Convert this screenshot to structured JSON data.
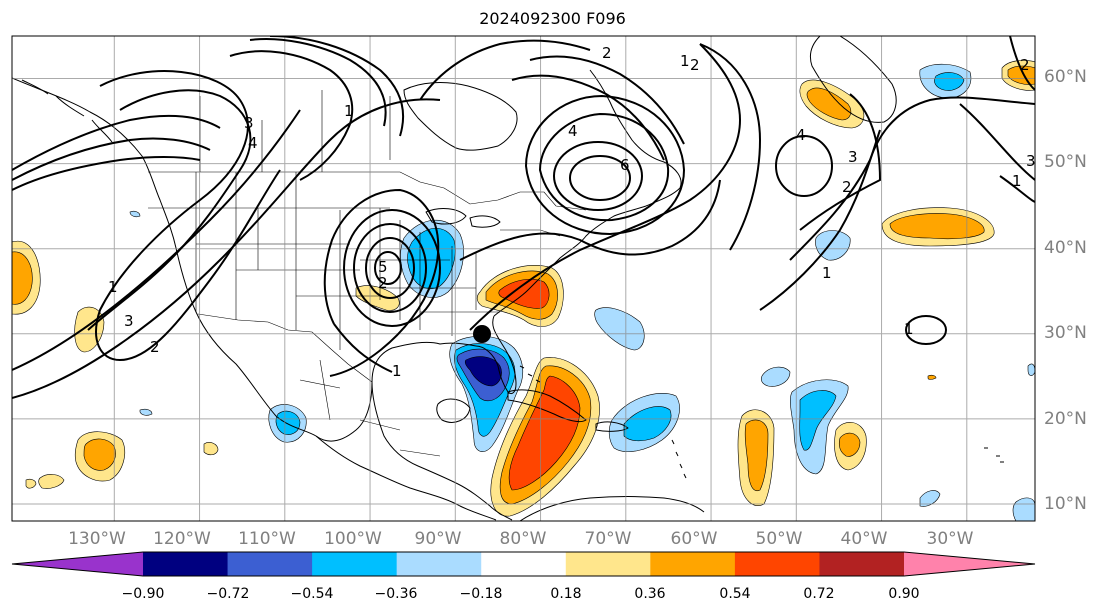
{
  "title": "2024092300 F096",
  "map": {
    "projection": "plate-carree",
    "lon_range": [
      -142,
      -22
    ],
    "lat_range": [
      8,
      65
    ],
    "storm_marker": {
      "lon": -85,
      "lat": 30
    },
    "contour_labels": [
      "1",
      "1",
      "1",
      "1",
      "1",
      "1",
      "1",
      "2",
      "2",
      "2",
      "2",
      "2",
      "2",
      "3",
      "3",
      "3",
      "3",
      "4",
      "4",
      "4",
      "5",
      "6"
    ]
  },
  "lat_labels": [
    "60°N",
    "50°N",
    "40°N",
    "30°N",
    "20°N",
    "10°N"
  ],
  "lon_labels": [
    "130°W",
    "120°W",
    "110°W",
    "100°W",
    "90°W",
    "80°W",
    "70°W",
    "60°W",
    "50°W",
    "40°W",
    "30°W"
  ],
  "colorbar": {
    "ticks": [
      "−0.90",
      "−0.72",
      "−0.54",
      "−0.36",
      "−0.18",
      "0.18",
      "0.36",
      "0.54",
      "0.72",
      "0.90"
    ],
    "colors": [
      "#9933cc",
      "#000080",
      "#3c5fd2",
      "#00bfff",
      "#aadcff",
      "#ffffff",
      "#ffe68c",
      "#ffa500",
      "#ff4500",
      "#b22222",
      "#ff82ab"
    ]
  }
}
